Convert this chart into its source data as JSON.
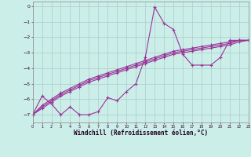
{
  "xlabel": "Windchill (Refroidissement éolien,°C)",
  "bg_color": "#cceee8",
  "grid_color": "#aacccc",
  "line_color": "#993399",
  "xlim": [
    0,
    23
  ],
  "ylim": [
    -7.5,
    0.3
  ],
  "yticks": [
    0,
    -1,
    -2,
    -3,
    -4,
    -5,
    -6,
    -7
  ],
  "xticks": [
    0,
    1,
    2,
    3,
    4,
    5,
    6,
    7,
    8,
    9,
    10,
    11,
    12,
    13,
    14,
    15,
    16,
    17,
    18,
    19,
    20,
    21,
    22,
    23
  ],
  "curve1_x": [
    0,
    1,
    2,
    3,
    4,
    5,
    6,
    7,
    8,
    9,
    10,
    11,
    12,
    13,
    14,
    15,
    16,
    17,
    18,
    19,
    20,
    21,
    22,
    23
  ],
  "curve1_y": [
    -7.0,
    -5.8,
    -6.3,
    -7.0,
    -6.5,
    -7.0,
    -7.0,
    -6.8,
    -5.9,
    -6.1,
    -5.5,
    -5.0,
    -3.3,
    -0.05,
    -1.1,
    -1.5,
    -3.1,
    -3.8,
    -3.8,
    -3.8,
    -3.3,
    -2.2,
    -2.2,
    -2.2
  ],
  "curve2_x": [
    0,
    1,
    2,
    3,
    4,
    5,
    6,
    7,
    8,
    9,
    10,
    11,
    12,
    13,
    14,
    15,
    16,
    17,
    18,
    19,
    20,
    21,
    22,
    23
  ],
  "curve2_y": [
    -7.0,
    -6.6,
    -6.2,
    -5.8,
    -5.5,
    -5.2,
    -4.9,
    -4.7,
    -4.5,
    -4.3,
    -4.1,
    -3.9,
    -3.7,
    -3.5,
    -3.3,
    -3.1,
    -3.0,
    -2.9,
    -2.8,
    -2.7,
    -2.6,
    -2.5,
    -2.3,
    -2.2
  ],
  "curve3_x": [
    0,
    1,
    2,
    3,
    4,
    5,
    6,
    7,
    8,
    9,
    10,
    11,
    12,
    13,
    14,
    15,
    16,
    17,
    18,
    19,
    20,
    21,
    22,
    23
  ],
  "curve3_y": [
    -7.0,
    -6.5,
    -6.1,
    -5.7,
    -5.4,
    -5.1,
    -4.8,
    -4.6,
    -4.4,
    -4.2,
    -4.0,
    -3.8,
    -3.6,
    -3.4,
    -3.2,
    -3.0,
    -2.9,
    -2.8,
    -2.7,
    -2.6,
    -2.5,
    -2.4,
    -2.2,
    -2.2
  ],
  "curve4_x": [
    0,
    1,
    2,
    3,
    4,
    5,
    6,
    7,
    8,
    9,
    10,
    11,
    12,
    13,
    14,
    15,
    16,
    17,
    18,
    19,
    20,
    21,
    22,
    23
  ],
  "curve4_y": [
    -7.0,
    -6.4,
    -6.0,
    -5.6,
    -5.3,
    -5.0,
    -4.7,
    -4.5,
    -4.3,
    -4.1,
    -3.9,
    -3.7,
    -3.5,
    -3.3,
    -3.1,
    -2.9,
    -2.8,
    -2.7,
    -2.6,
    -2.5,
    -2.4,
    -2.3,
    -2.2,
    -2.2
  ]
}
